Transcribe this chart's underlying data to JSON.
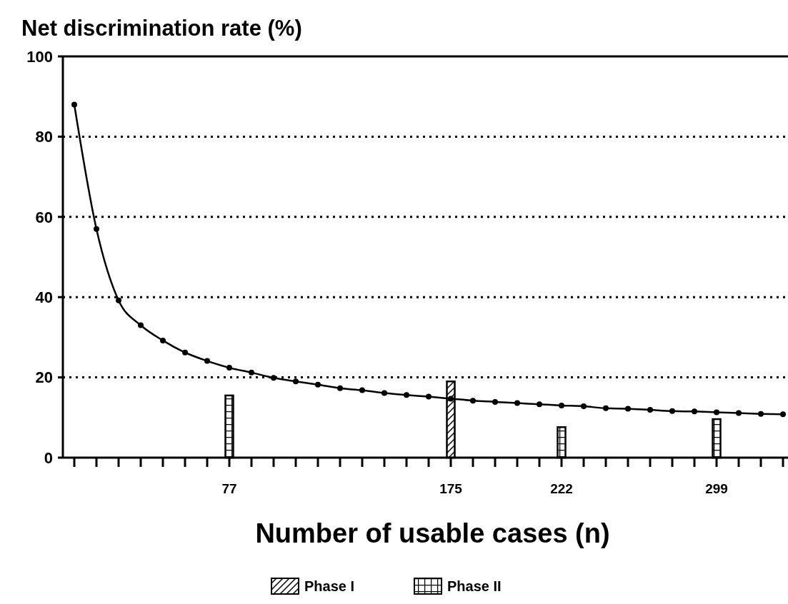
{
  "chart_data": {
    "type": "bar",
    "ylabel": "Net discrimination rate (%)",
    "xlabel": "Number of usable cases (n)",
    "categories": [
      null,
      null,
      null,
      null,
      null,
      null,
      null,
      "77",
      null,
      null,
      null,
      null,
      null,
      null,
      null,
      null,
      null,
      "175",
      null,
      null,
      null,
      null,
      "222",
      null,
      null,
      null,
      null,
      null,
      null,
      "299",
      null,
      null,
      null
    ],
    "series": [
      {
        "name": "Phase I",
        "color": "#000000",
        "values": [
          null,
          null,
          null,
          null,
          null,
          null,
          null,
          null,
          null,
          null,
          null,
          null,
          null,
          null,
          null,
          null,
          null,
          19.0,
          null,
          null,
          null,
          null,
          null,
          null,
          null,
          null,
          null,
          null,
          null,
          null,
          null,
          null,
          null
        ]
      },
      {
        "name": "Phase II",
        "color": "#000000",
        "values": [
          null,
          null,
          null,
          null,
          null,
          null,
          null,
          15.5,
          null,
          null,
          null,
          null,
          null,
          null,
          null,
          null,
          null,
          null,
          null,
          null,
          null,
          null,
          7.6,
          null,
          null,
          null,
          null,
          null,
          null,
          9.6,
          null,
          null,
          null
        ]
      },
      {
        "type": "line",
        "color": "#000000",
        "marker": "circle",
        "line_style": "solid",
        "values": [
          88,
          57,
          39.2,
          33,
          29.2,
          26.2,
          24.1,
          22.4,
          21.2,
          19.9,
          19,
          18.2,
          17.3,
          16.8,
          16.1,
          15.6,
          15.2,
          14.7,
          14.2,
          13.9,
          13.6,
          13.3,
          13,
          12.8,
          12.3,
          12.2,
          11.9,
          11.6,
          11.5,
          11.3,
          11.1,
          10.9,
          10.8
        ]
      }
    ],
    "ylim": [
      0,
      100
    ],
    "yticks": [
      0,
      20,
      40,
      60,
      80,
      100
    ],
    "grid": "y",
    "legend": "bottom"
  }
}
